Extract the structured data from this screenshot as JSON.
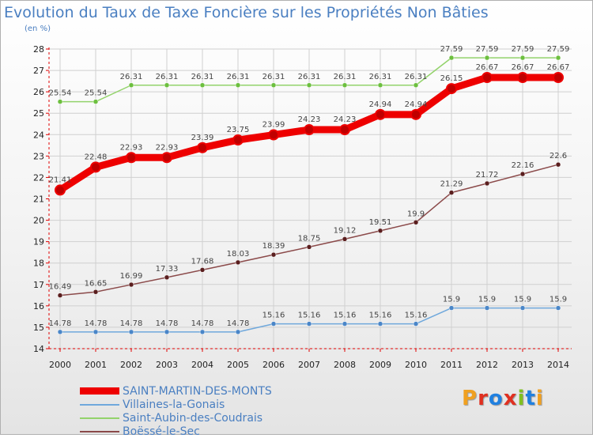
{
  "title": "Evolution du Taux de Taxe Foncière sur les Propriétés Non Bâties",
  "unit_label": "(en %)",
  "logo_text": "Proxiti",
  "colors": {
    "title": "#4a7fc1",
    "logo": [
      "#f0a020",
      "#e03020",
      "#2080e0",
      "#e03020",
      "#80c020",
      "#2080e0",
      "#f0a020"
    ]
  },
  "chart_data": {
    "type": "line",
    "title": "Evolution du Taux de Taxe Foncière sur les Propriétés Non Bâties",
    "ylabel": "(en %)",
    "ylim": [
      14,
      28
    ],
    "yticks": [
      14,
      15,
      16,
      17,
      18,
      19,
      20,
      21,
      22,
      23,
      24,
      25,
      26,
      27,
      28
    ],
    "x": [
      "2000",
      "2001",
      "2002",
      "2003",
      "2004",
      "2005",
      "2006",
      "2007",
      "2008",
      "2009",
      "2010",
      "2011",
      "2012",
      "2013",
      "2014"
    ],
    "grid": true,
    "legend_position": "bottom-left",
    "series": [
      {
        "name": "SAINT-MARTIN-DES-MONTS",
        "color": "#ee0000",
        "marker_color": "#c00000",
        "thick": true,
        "values": [
          21.41,
          22.48,
          22.93,
          22.93,
          23.39,
          23.75,
          23.99,
          24.23,
          24.23,
          24.94,
          24.94,
          26.15,
          26.67,
          26.67,
          26.67
        ],
        "labels": [
          "21.41",
          "22.48",
          "22.93",
          "22.93",
          "23.39",
          "23.75",
          "23.99",
          "24.23",
          "24.23",
          "24.94",
          "24.94",
          "26.15",
          "26.67",
          "26.67",
          "26.67"
        ]
      },
      {
        "name": "Villaines-la-Gonais",
        "color": "#6fa8dc",
        "marker_color": "#4a86c8",
        "thick": false,
        "values": [
          14.78,
          14.78,
          14.78,
          14.78,
          14.78,
          14.78,
          15.16,
          15.16,
          15.16,
          15.16,
          15.16,
          15.9,
          15.9,
          15.9,
          15.9
        ],
        "labels": [
          "14.78",
          "14.78",
          "14.78",
          "14.78",
          "14.78",
          "14.78",
          "15.16",
          "15.16",
          "15.16",
          "15.16",
          "15.16",
          "15.9",
          "15.9",
          "15.9",
          "15.9"
        ]
      },
      {
        "name": "Saint-Aubin-des-Coudrais",
        "color": "#93d36b",
        "marker_color": "#6cbf3e",
        "thick": false,
        "values": [
          25.54,
          25.54,
          26.31,
          26.31,
          26.31,
          26.31,
          26.31,
          26.31,
          26.31,
          26.31,
          26.31,
          27.59,
          27.59,
          27.59,
          27.59
        ],
        "labels": [
          "25.54",
          "25.54",
          "26.31",
          "26.31",
          "26.31",
          "26.31",
          "26.31",
          "26.31",
          "26.31",
          "26.31",
          "26.31",
          "27.59",
          "27.59",
          "27.59",
          "27.59"
        ]
      },
      {
        "name": "Boëssé-le-Sec",
        "color": "#8b4a4a",
        "marker_color": "#5a1e1e",
        "thick": false,
        "values": [
          16.49,
          16.65,
          16.99,
          17.33,
          17.68,
          18.03,
          18.39,
          18.75,
          19.12,
          19.51,
          19.9,
          21.29,
          21.72,
          22.16,
          22.6
        ],
        "labels": [
          "16.49",
          "16.65",
          "16.99",
          "17.33",
          "17.68",
          "18.03",
          "18.39",
          "18.75",
          "19.12",
          "19.51",
          "19.9",
          "21.29",
          "21.72",
          "22.16",
          "22.6"
        ]
      }
    ]
  }
}
